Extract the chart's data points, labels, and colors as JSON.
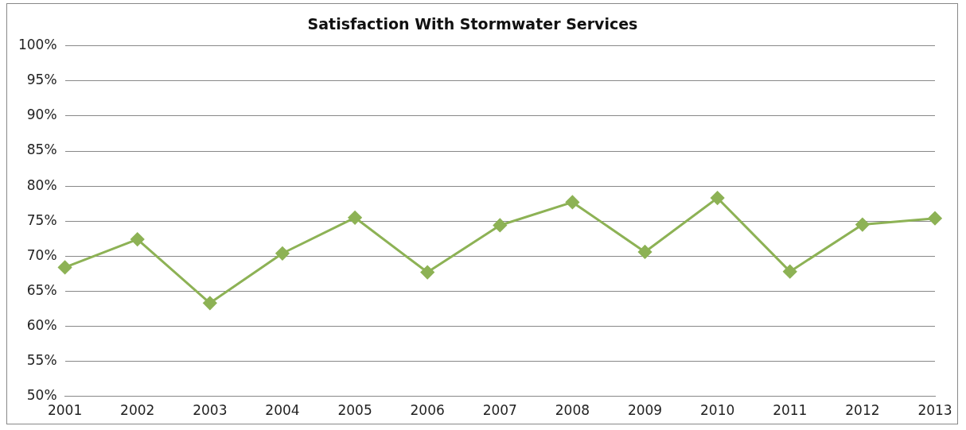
{
  "chart_data": {
    "type": "line",
    "title": "Satisfaction With Stormwater Services",
    "categories": [
      "2001",
      "2002",
      "2003",
      "2004",
      "2005",
      "2006",
      "2007",
      "2008",
      "2009",
      "2010",
      "2011",
      "2012",
      "2013"
    ],
    "series": [
      {
        "color": "#8db255",
        "values": [
          68.4,
          72.4,
          63.3,
          70.4,
          75.5,
          67.7,
          74.4,
          77.7,
          70.6,
          78.3,
          67.8,
          74.5,
          75.4
        ]
      }
    ],
    "ylim": [
      50,
      100
    ],
    "yticks": [
      {
        "value": 50,
        "label": "50%"
      },
      {
        "value": 55,
        "label": "55%"
      },
      {
        "value": 60,
        "label": "60%"
      },
      {
        "value": 65,
        "label": "65%"
      },
      {
        "value": 70,
        "label": "70%"
      },
      {
        "value": 75,
        "label": "75%"
      },
      {
        "value": 80,
        "label": "80%"
      },
      {
        "value": 85,
        "label": "85%"
      },
      {
        "value": 90,
        "label": "90%"
      },
      {
        "value": 95,
        "label": "95%"
      },
      {
        "value": 100,
        "label": "100%"
      }
    ],
    "grid": "y",
    "legend": false,
    "marker": "diamond",
    "line_style": "solid"
  }
}
